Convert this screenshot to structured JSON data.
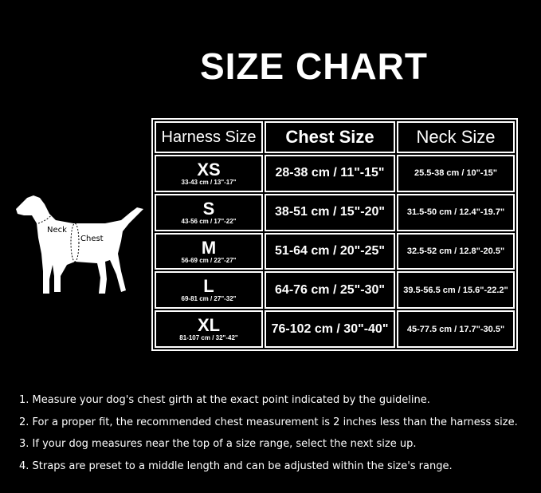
{
  "title": "SIZE CHART",
  "dog": {
    "neck_label": "Neck",
    "chest_label": "Chest"
  },
  "table": {
    "headers": [
      "Harness Size",
      "Chest Size",
      "Neck Size"
    ],
    "rows": [
      {
        "size": "XS",
        "range": "33-43 cm / 13\"-17\"",
        "chest": "28-38 cm / 11\"-15\"",
        "neck": "25.5-38 cm / 10\"-15\""
      },
      {
        "size": "S",
        "range": "43-56 cm / 17\"-22\"",
        "chest": "38-51 cm / 15\"-20\"",
        "neck": "31.5-50 cm / 12.4\"-19.7\""
      },
      {
        "size": "M",
        "range": "56-69 cm / 22\"-27\"",
        "chest": "51-64 cm / 20\"-25\"",
        "neck": "32.5-52 cm / 12.8\"-20.5\""
      },
      {
        "size": "L",
        "range": "69-81 cm / 27\"-32\"",
        "chest": "64-76 cm / 25\"-30\"",
        "neck": "39.5-56.5 cm / 15.6\"-22.2\""
      },
      {
        "size": "XL",
        "range": "81-107 cm / 32\"-42\"",
        "chest": "76-102 cm / 30\"-40\"",
        "neck": "45-77.5 cm / 17.7\"-30.5\""
      }
    ]
  },
  "notes": [
    "1. Measure your dog's chest girth at the exact point indicated by the guideline.",
    "2. For a proper fit, the recommended chest measurement is 2 inches less than the harness size.",
    "3. If your dog measures near the top of a size range, select the next size up.",
    "4. Straps are preset to a middle length and can be adjusted within the size's range."
  ]
}
